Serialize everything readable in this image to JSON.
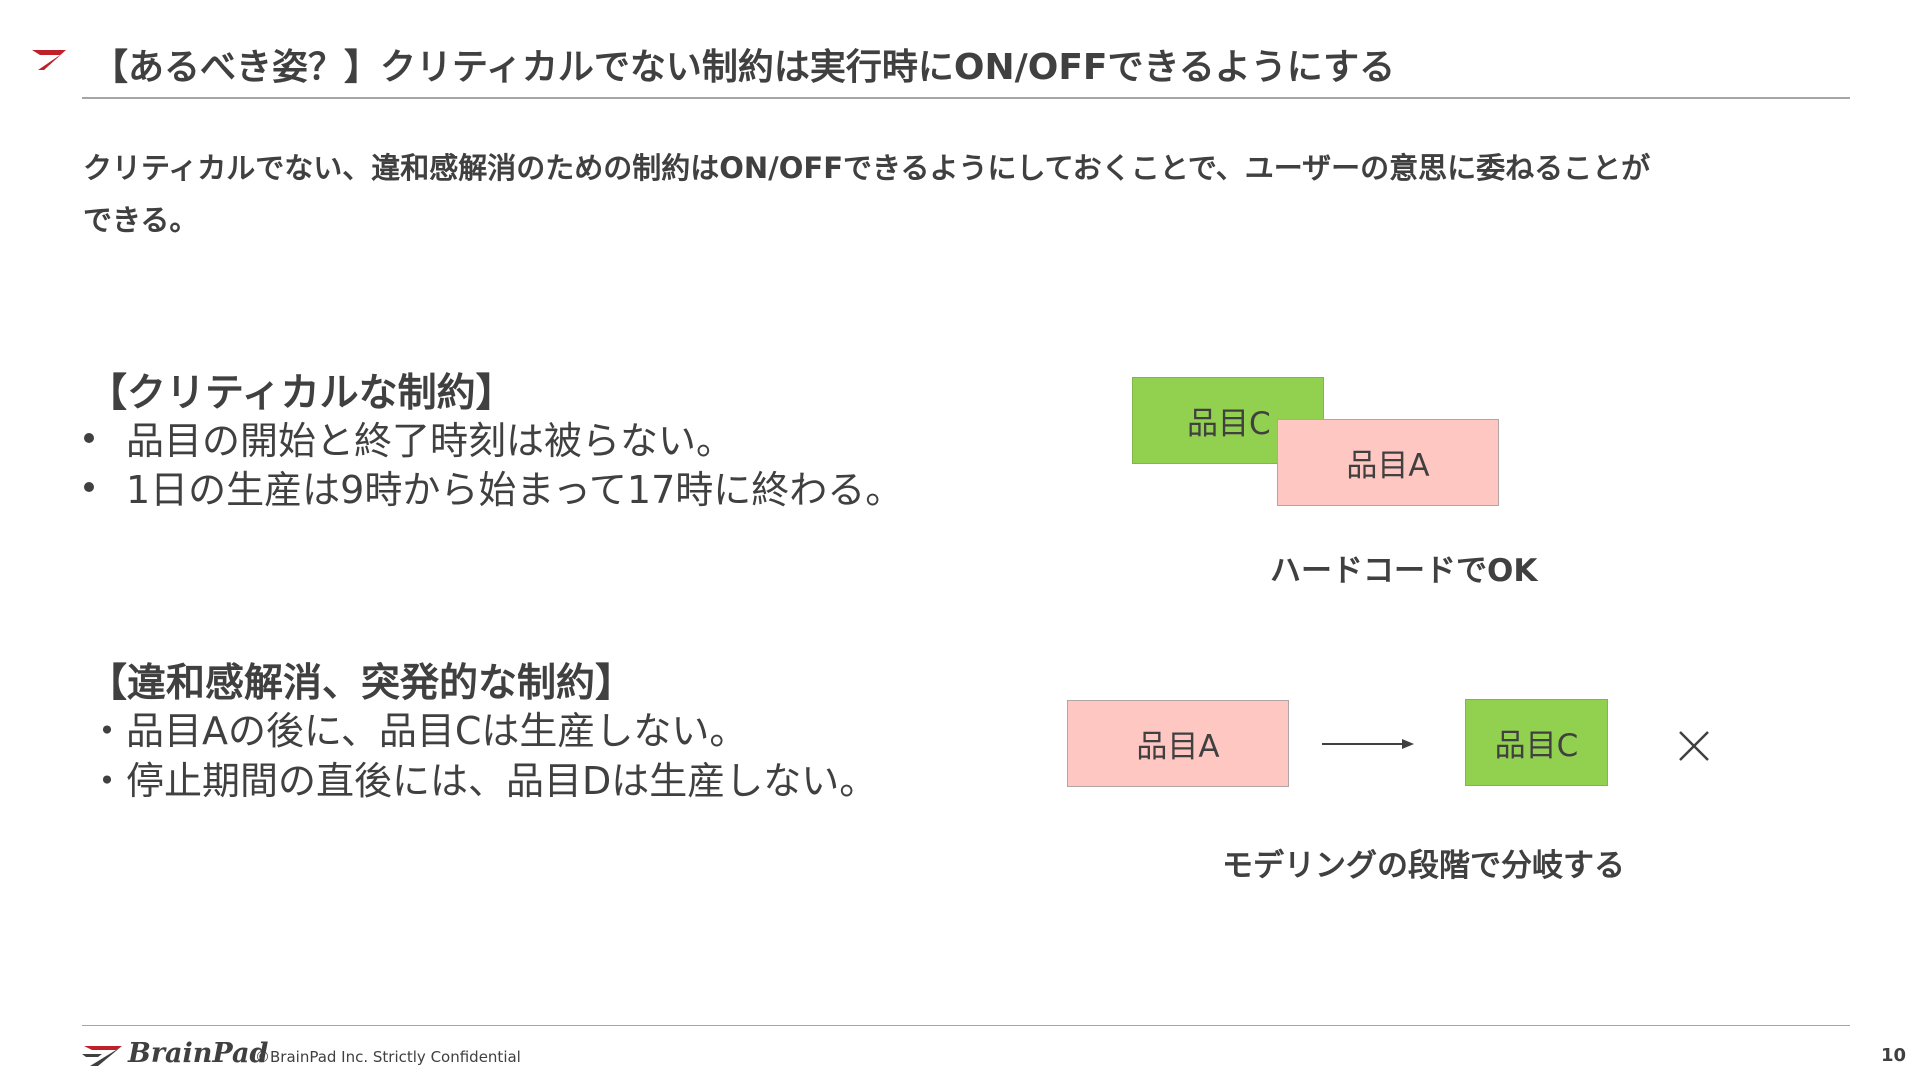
{
  "title": "【あるべき姿？】クリティカルでない制約は実行時にON/OFFできるようにする",
  "lead": {
    "line1": "クリティカルでない、違和感解消のための制約はON/OFFできるようにしておくことで、ユーザーの意思に委ねることが",
    "line2": "できる。"
  },
  "critical": {
    "heading": "【クリティカルな制約】",
    "items": [
      "品目の開始と終了時刻は被らない。",
      "1日の生産は9時から始まって17時に終わる。"
    ]
  },
  "soft": {
    "heading": "【違和感解消、突発的な制約】",
    "items": [
      "・品目Aの後に、品目Cは生産しない。",
      "・停止期間の直後には、品目Dは生産しない。"
    ]
  },
  "diagram_top": {
    "box_c": "品目C",
    "box_a": "品目A",
    "caption": "ハードコードでOK"
  },
  "diagram_bottom": {
    "box_a": "品目A",
    "box_c": "品目C",
    "caption": "モデリングの段階で分岐する"
  },
  "footer": {
    "logo_text": "BrainPad",
    "copyright": "©BrainPad Inc.  Strictly Confidential",
    "page_number": "10"
  },
  "colors": {
    "text": "#404040",
    "green_box": "#92d050",
    "pink_box": "#ffc7c2",
    "brand_red": "#c0202a"
  },
  "icons": {
    "title_mark": "brand-slash-icon",
    "arrow": "right-arrow-icon",
    "cross": "cross-icon"
  }
}
